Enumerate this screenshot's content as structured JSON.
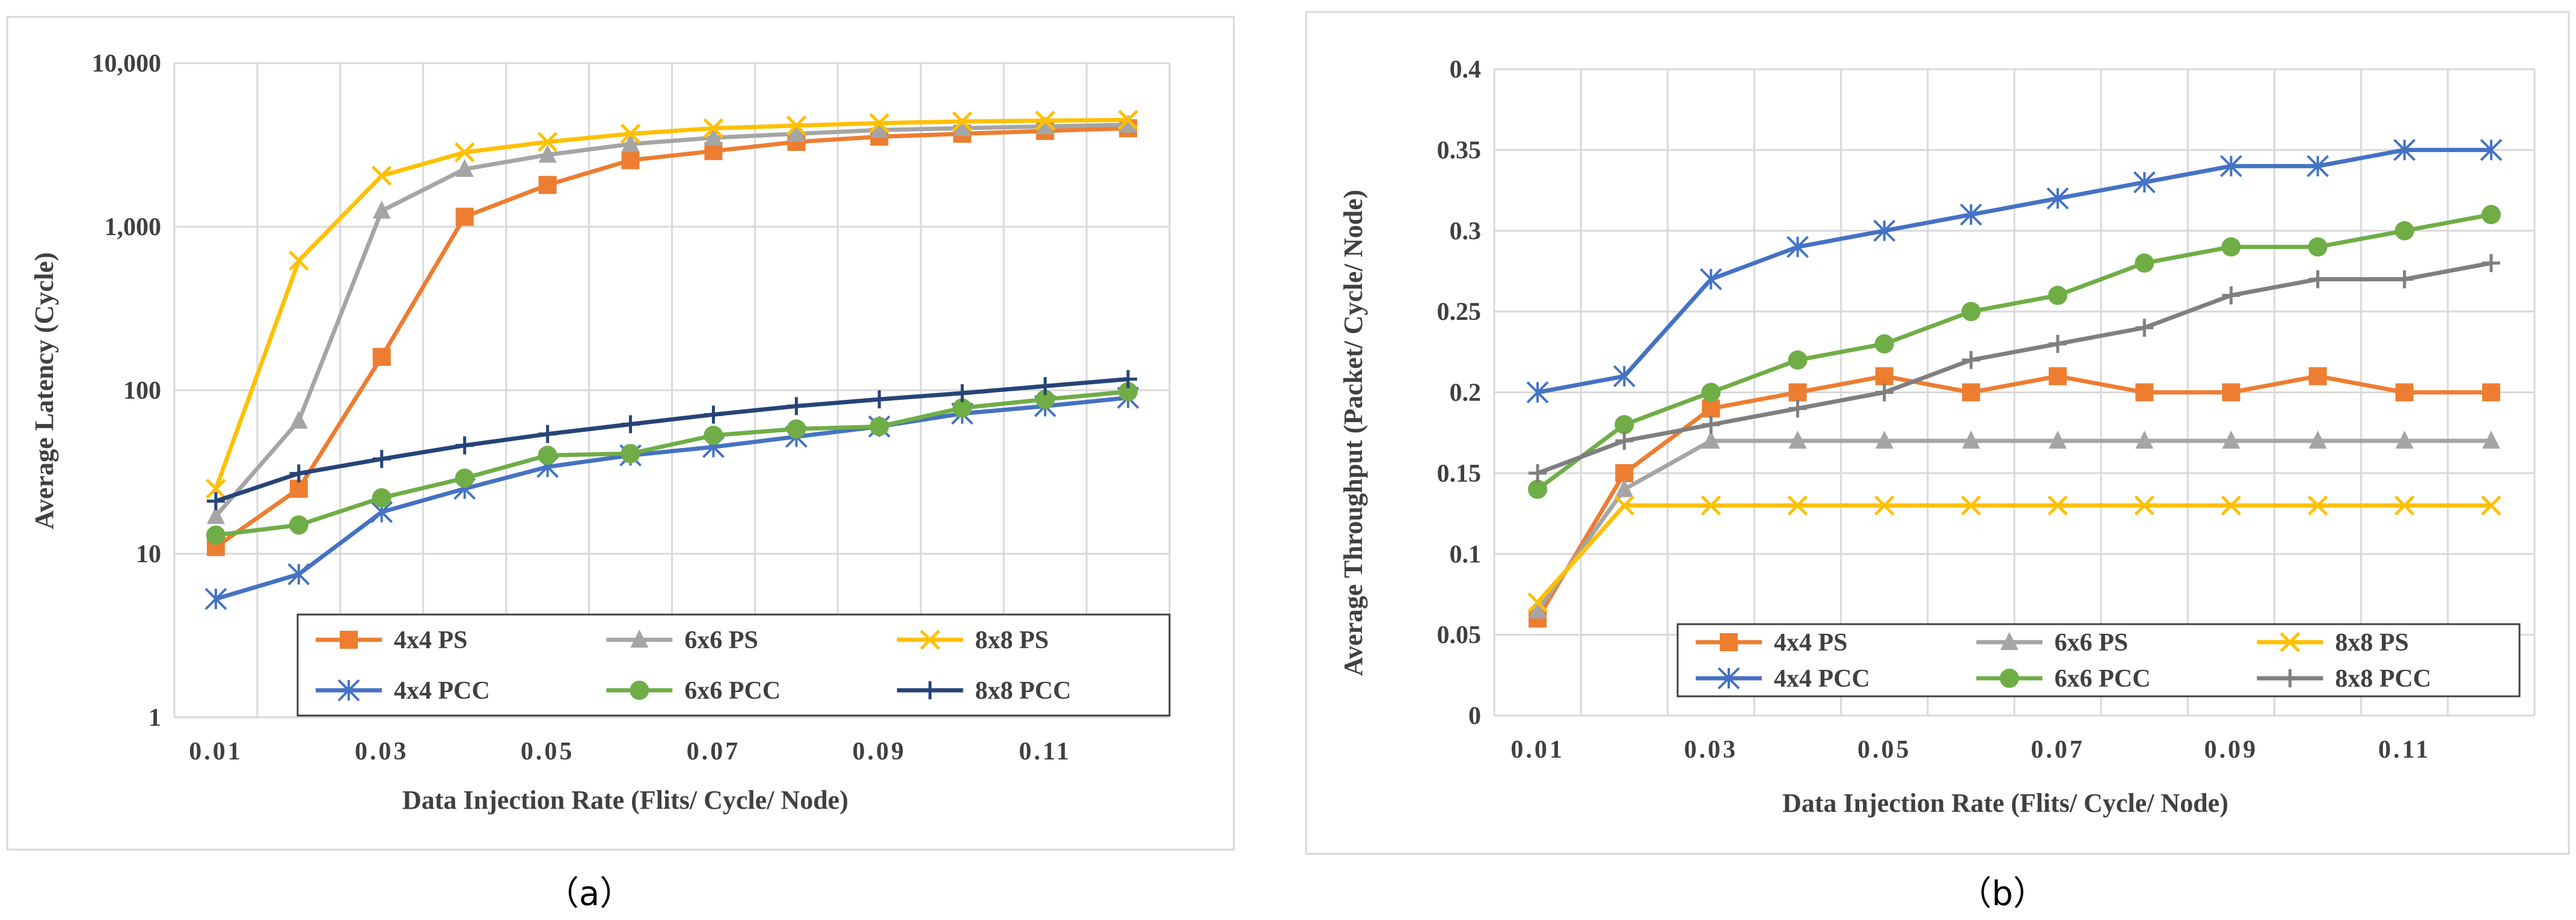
{
  "captions": {
    "a": "（a）",
    "b": "（b）"
  },
  "chart_data": [
    {
      "type": "line",
      "yscale": "log",
      "xlabel": "Data Injection Rate (Flits/ Cycle/ Node)",
      "ylabel": "Average Latency (Cycle)",
      "x": [
        0.01,
        0.02,
        0.03,
        0.04,
        0.05,
        0.06,
        0.07,
        0.08,
        0.09,
        0.1,
        0.11,
        0.12
      ],
      "xlim": [
        0.005,
        0.125
      ],
      "ylim": [
        1,
        10000
      ],
      "xticks": [
        0.01,
        0.03,
        0.05,
        0.07,
        0.09,
        0.11
      ],
      "xtick_labels": [
        "0.01",
        "0.03",
        "0.05",
        "0.07",
        "0.09",
        "0.11"
      ],
      "yticks": [
        1,
        10,
        100,
        1000,
        10000
      ],
      "ytick_labels": [
        "1",
        "10",
        "100",
        "1,000",
        "10,000"
      ],
      "grid": true,
      "legend_position": "bottom-right",
      "series": [
        {
          "name": "4x4 PS",
          "color": "#ED7D31",
          "marker": "square",
          "values": [
            11,
            25,
            160,
            1150,
            1800,
            2550,
            2900,
            3300,
            3550,
            3700,
            3850,
            4000
          ]
        },
        {
          "name": "6x6 PS",
          "color": "#A5A5A5",
          "marker": "triangle",
          "values": [
            17,
            65,
            1250,
            2250,
            2750,
            3200,
            3500,
            3700,
            3900,
            4000,
            4100,
            4200
          ]
        },
        {
          "name": "8x8 PS",
          "color": "#FFC000",
          "marker": "x",
          "values": [
            25,
            620,
            2050,
            2850,
            3300,
            3700,
            4000,
            4150,
            4300,
            4400,
            4450,
            4500
          ]
        },
        {
          "name": "4x4 PCC",
          "color": "#4472C4",
          "marker": "star",
          "values": [
            5.3,
            7.5,
            18,
            25,
            34,
            40,
            45,
            52,
            60,
            72,
            80,
            90
          ]
        },
        {
          "name": "6x6 PCC",
          "color": "#70AD47",
          "marker": "circle",
          "values": [
            13,
            15,
            22,
            29,
            40,
            41,
            53,
            58,
            60,
            78,
            88,
            98
          ]
        },
        {
          "name": "8x8 PCC",
          "color": "#264478",
          "marker": "plus",
          "values": [
            21,
            31,
            38,
            46,
            54,
            62,
            71,
            80,
            88,
            96,
            106,
            117
          ]
        }
      ]
    },
    {
      "type": "line",
      "xlabel": "Data Injection Rate (Flits/ Cycle/ Node)",
      "ylabel": "Average Throughput (Packet/ Cycle/ Node)",
      "x": [
        0.01,
        0.02,
        0.03,
        0.04,
        0.05,
        0.06,
        0.07,
        0.08,
        0.09,
        0.1,
        0.11,
        0.12
      ],
      "xlim": [
        0.005,
        0.125
      ],
      "ylim": [
        0,
        0.4
      ],
      "xticks": [
        0.01,
        0.03,
        0.05,
        0.07,
        0.09,
        0.11
      ],
      "xtick_labels": [
        "0.01",
        "0.03",
        "0.05",
        "0.07",
        "0.09",
        "0.11"
      ],
      "yticks": [
        0,
        0.05,
        0.1,
        0.15,
        0.2,
        0.25,
        0.3,
        0.35,
        0.4
      ],
      "ytick_labels": [
        "0",
        "0.05",
        "0.1",
        "0.15",
        "0.2",
        "0.25",
        "0.3",
        "0.35",
        "0.4"
      ],
      "grid": true,
      "legend_position": "bottom-right",
      "series": [
        {
          "name": "4x4 PS",
          "color": "#ED7D31",
          "marker": "square",
          "values": [
            0.06,
            0.15,
            0.19,
            0.2,
            0.21,
            0.2,
            0.21,
            0.2,
            0.2,
            0.21,
            0.2,
            0.2
          ]
        },
        {
          "name": "6x6 PS",
          "color": "#A5A5A5",
          "marker": "triangle",
          "values": [
            0.065,
            0.14,
            0.17,
            0.17,
            0.17,
            0.17,
            0.17,
            0.17,
            0.17,
            0.17,
            0.17,
            0.17
          ]
        },
        {
          "name": "8x8 PS",
          "color": "#FFC000",
          "marker": "x",
          "values": [
            0.07,
            0.13,
            0.13,
            0.13,
            0.13,
            0.13,
            0.13,
            0.13,
            0.13,
            0.13,
            0.13,
            0.13
          ]
        },
        {
          "name": "4x4 PCC",
          "color": "#4472C4",
          "marker": "star",
          "values": [
            0.2,
            0.21,
            0.27,
            0.29,
            0.3,
            0.31,
            0.32,
            0.33,
            0.34,
            0.34,
            0.35,
            0.35
          ]
        },
        {
          "name": "6x6 PCC",
          "color": "#70AD47",
          "marker": "circle",
          "values": [
            0.14,
            0.18,
            0.2,
            0.22,
            0.23,
            0.25,
            0.26,
            0.28,
            0.29,
            0.29,
            0.3,
            0.31
          ]
        },
        {
          "name": "8x8 PCC",
          "color": "#7F7F7F",
          "marker": "plus",
          "values": [
            0.15,
            0.17,
            0.18,
            0.19,
            0.2,
            0.22,
            0.23,
            0.24,
            0.26,
            0.27,
            0.27,
            0.28
          ]
        }
      ]
    }
  ]
}
